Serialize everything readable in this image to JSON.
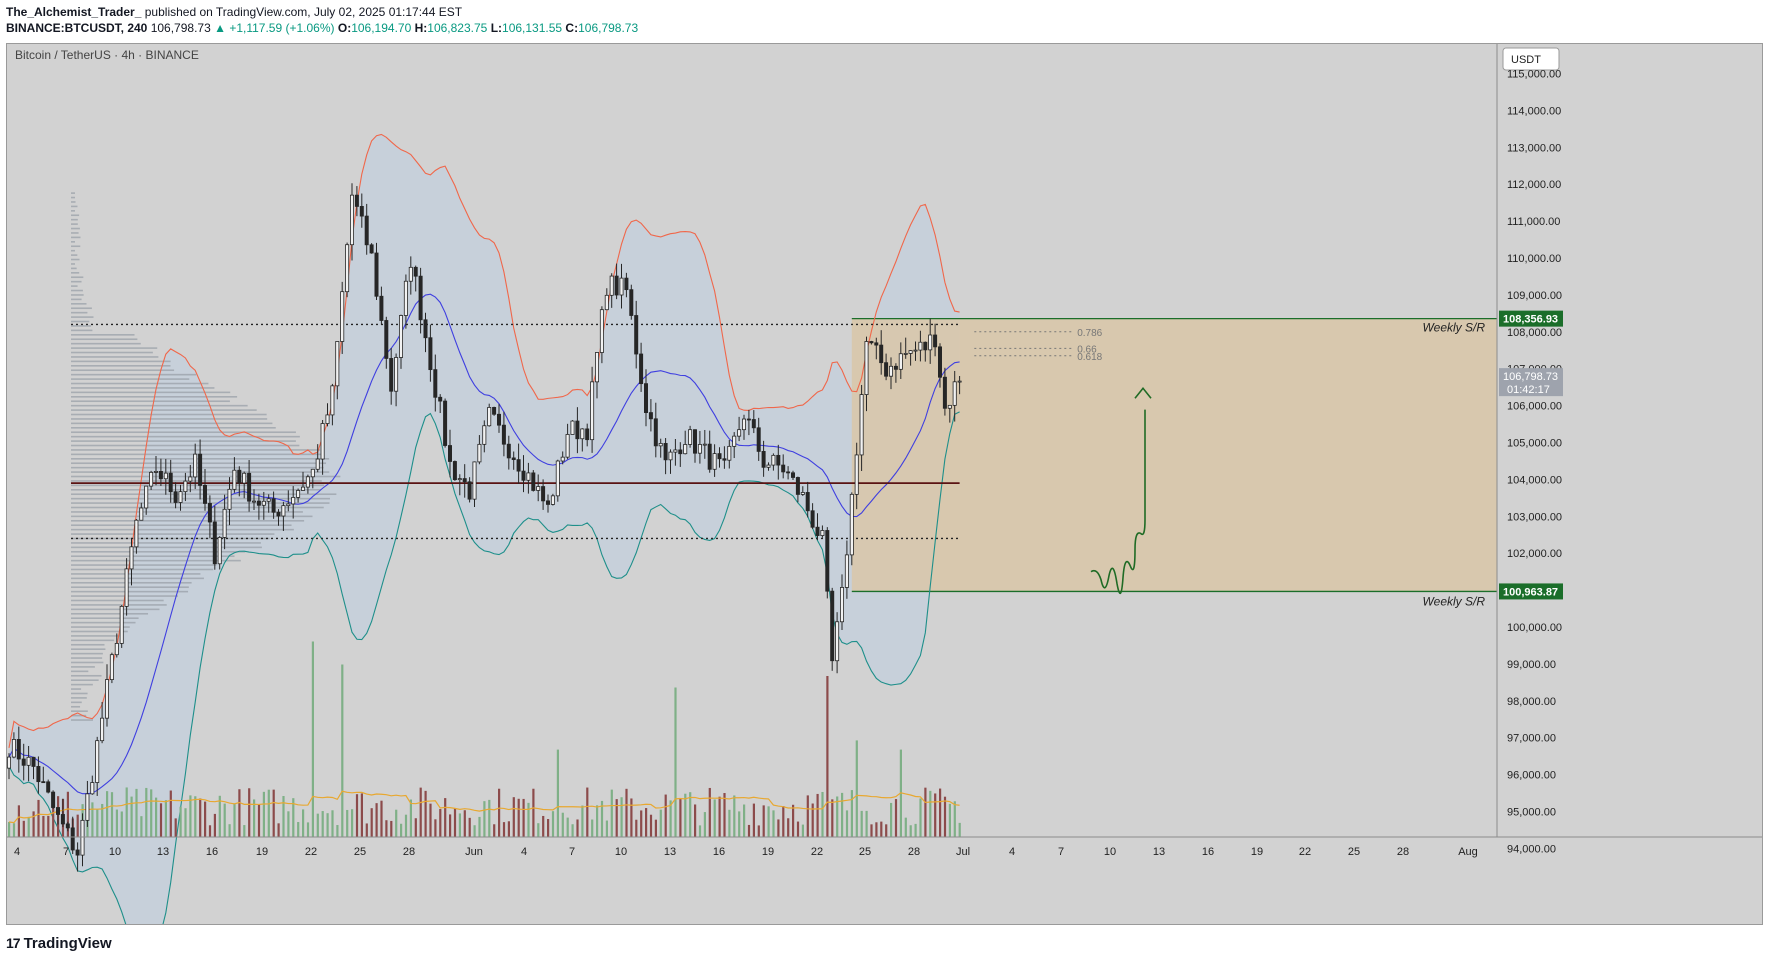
{
  "header": {
    "author": "The_Alchemist_Trader_",
    "published": "published on TradingView.com, July 02, 2025 01:17:44 EST",
    "symbol": "BINANCE:BTCUSDT, 240",
    "last": "106,798.73",
    "change": "▲ +1,117.59 (+1.06%)",
    "open_label": "O:",
    "open": "106,194.70",
    "high_label": "H:",
    "high": "106,823.75",
    "low_label": "L:",
    "low": "106,131.55",
    "close_label": "C:",
    "close": "106,798.73"
  },
  "footer": {
    "logo": "17",
    "brand": "TradingView"
  },
  "colors": {
    "background": "#d2d2d2",
    "candle": "#262626",
    "upper_band": "#f0674a",
    "lower_band": "#1e8f8a",
    "basis": "#3f3fe0",
    "band_fill": "#c4cfdc",
    "zone_fill": "#d9c7a8",
    "zone_line": "#1b6e2a",
    "arrow": "#1f6b25",
    "poc_line": "#5a1313",
    "volume_up": "#7fb087",
    "volume_down": "#8c4b4b",
    "volume_ma": "#e8a830",
    "profile": "#9aa0a8"
  },
  "chart_data": {
    "type": "candlestick",
    "title": "Bitcoin / TetherUS · 4h · BINANCE",
    "currency": "USDT",
    "ylim": [
      93300,
      115500
    ],
    "y_ticks": [
      "115,000.00",
      "114,000.00",
      "113,000.00",
      "112,000.00",
      "111,000.00",
      "110,000.00",
      "109,000.00",
      "108,000.00",
      "107,000.00",
      "106,000.00",
      "105,000.00",
      "104,000.00",
      "103,000.00",
      "102,000.00",
      "101,000.00",
      "100,000.00",
      "99,000.00",
      "98,000.00",
      "97,000.00",
      "96,000.00",
      "95,000.00",
      "94,000.00"
    ],
    "x_ticks": [
      "4",
      "7",
      "10",
      "13",
      "16",
      "19",
      "22",
      "25",
      "28",
      "Jun",
      "4",
      "7",
      "10",
      "13",
      "16",
      "19",
      "22",
      "25",
      "28",
      "Jul",
      "4",
      "7",
      "10",
      "13",
      "16",
      "19",
      "22",
      "25",
      "28",
      "Aug"
    ],
    "last_price": {
      "value": "106,798.73",
      "countdown": "01:42:17"
    },
    "weekly_sr": [
      {
        "label": "Weekly S/R",
        "value": 108356.93,
        "tag": "108,356.93"
      },
      {
        "label": "Weekly S/R",
        "value": 100963.87,
        "tag": "100,963.87"
      }
    ],
    "fib_levels": [
      {
        "label": "0.786",
        "value": 108000
      },
      {
        "label": "0.66",
        "value": 107550
      },
      {
        "label": "0.618",
        "value": 107350
      }
    ],
    "horizontal_levels": {
      "upper_dotted": 108200,
      "poc": 103900,
      "lower_dotted": 102400
    },
    "price_path": [
      [
        0,
        96800
      ],
      [
        5,
        96200
      ],
      [
        10,
        94800
      ],
      [
        14,
        93900
      ],
      [
        18,
        96800
      ],
      [
        22,
        99800
      ],
      [
        26,
        102800
      ],
      [
        30,
        104300
      ],
      [
        34,
        103600
      ],
      [
        38,
        104400
      ],
      [
        42,
        102000
      ],
      [
        46,
        104300
      ],
      [
        50,
        103500
      ],
      [
        54,
        103100
      ],
      [
        58,
        103600
      ],
      [
        62,
        104200
      ],
      [
        66,
        106300
      ],
      [
        70,
        111700
      ],
      [
        74,
        110000
      ],
      [
        78,
        106500
      ],
      [
        82,
        110000
      ],
      [
        86,
        107200
      ],
      [
        90,
        104400
      ],
      [
        94,
        103700
      ],
      [
        98,
        105700
      ],
      [
        102,
        104900
      ],
      [
        106,
        104100
      ],
      [
        110,
        103200
      ],
      [
        114,
        105300
      ],
      [
        118,
        105400
      ],
      [
        122,
        109300
      ],
      [
        126,
        109100
      ],
      [
        130,
        106000
      ],
      [
        134,
        104400
      ],
      [
        138,
        105200
      ],
      [
        142,
        104700
      ],
      [
        146,
        104200
      ],
      [
        150,
        105800
      ],
      [
        154,
        104500
      ],
      [
        158,
        104300
      ],
      [
        162,
        103500
      ],
      [
        166,
        102300
      ],
      [
        168,
        99000
      ],
      [
        170,
        100800
      ],
      [
        172,
        103500
      ],
      [
        175,
        107700
      ],
      [
        179,
        107000
      ],
      [
        183,
        107400
      ],
      [
        187,
        107600
      ],
      [
        189,
        107900
      ],
      [
        191,
        105900
      ],
      [
        194,
        106800
      ]
    ],
    "volume": {
      "seed_note": "",
      "spikes": [
        [
          62,
          0.85
        ],
        [
          68,
          0.75
        ],
        [
          112,
          0.38
        ],
        [
          136,
          0.65
        ],
        [
          167,
          0.7
        ],
        [
          173,
          0.42
        ],
        [
          182,
          0.38
        ]
      ]
    }
  }
}
